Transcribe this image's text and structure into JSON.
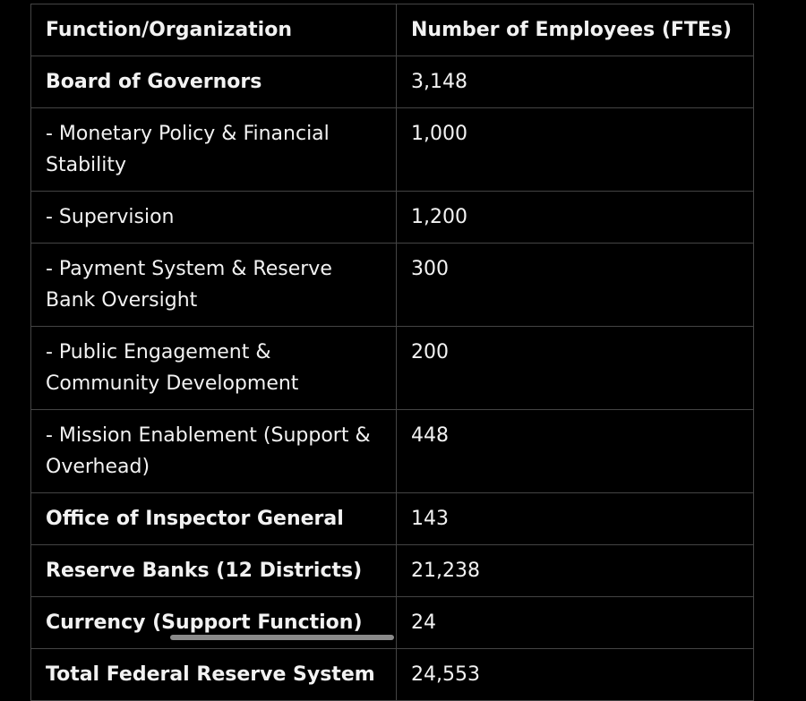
{
  "table": {
    "header": [
      "Function/Organization",
      "Number of Employees (FTEs)"
    ],
    "rows": [
      [
        "Board of Governors",
        "3,148"
      ],
      [
        "- Monetary Policy & Financial Stability",
        "1,000"
      ],
      [
        "- Supervision",
        "1,200"
      ],
      [
        "- Payment System & Reserve Bank Oversight",
        "300"
      ],
      [
        "- Public Engagement & Community Development",
        "200"
      ],
      [
        "- Mission Enablement (Support & Overhead)",
        "448"
      ],
      [
        "Office of Inspector General",
        "143"
      ],
      [
        "Reserve Banks (12 Districts)",
        "21,238"
      ],
      [
        "Currency (Support Function)",
        "24"
      ],
      [
        "Total Federal Reserve System",
        "24,553"
      ]
    ]
  }
}
